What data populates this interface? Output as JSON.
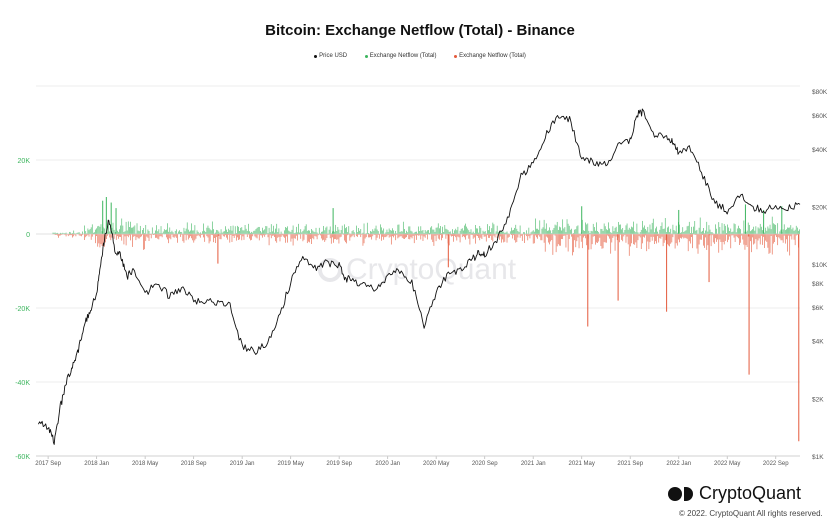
{
  "chart_data": {
    "type": "line+bar",
    "title": "Bitcoin: Exchange Netflow (Total) - Binance",
    "legend": [
      {
        "label": "Price USD",
        "color": "#111111"
      },
      {
        "label": "Exchange Netflow (Total)",
        "color": "#3cb55e"
      },
      {
        "label": "Exchange Netflow (Total)",
        "color": "#e4593b"
      }
    ],
    "x_ticks": [
      "2017 Sep",
      "2018 Jan",
      "2018 May",
      "2018 Sep",
      "2019 Jan",
      "2019 May",
      "2019 Sep",
      "2020 Jan",
      "2020 May",
      "2020 Sep",
      "2021 Jan",
      "2021 May",
      "2021 Sep",
      "2022 Jan",
      "2022 May",
      "2022 Sep"
    ],
    "x_range_months": [
      -1,
      62
    ],
    "left_axis": {
      "label": "Exchange Netflow (Total)",
      "ticks": [
        "20K",
        "0",
        "-20K",
        "-40K",
        "-60K"
      ],
      "tick_values": [
        20000,
        0,
        -20000,
        -40000,
        -60000
      ],
      "ylim": [
        -60000,
        40000
      ],
      "color": "#3cb55e"
    },
    "right_axis": {
      "label": "Price USD",
      "scale": "log",
      "ticks": [
        "$80K",
        "$60K",
        "$40K",
        "$20K",
        "$10K",
        "$8K",
        "$6K",
        "$4K",
        "$2K",
        "$1K"
      ],
      "tick_values": [
        80000,
        60000,
        40000,
        20000,
        10000,
        8000,
        6000,
        4000,
        2000,
        1000
      ],
      "ylim": [
        1000,
        85000
      ]
    },
    "price_series": {
      "name": "Price USD",
      "months": [
        -0.8,
        0,
        0.5,
        1,
        1.5,
        2,
        2.5,
        3,
        3.5,
        4,
        4.3,
        4.6,
        5,
        5.5,
        6,
        6.5,
        7,
        8,
        9,
        10,
        11,
        12,
        13,
        14,
        15,
        16,
        17,
        18,
        19,
        20,
        21,
        22,
        23,
        24,
        24.5,
        25,
        26,
        27,
        28,
        29,
        30,
        31,
        32,
        33,
        34,
        35,
        35.5,
        36,
        37,
        38,
        39,
        40,
        41,
        42,
        43,
        44,
        45,
        46,
        47,
        48,
        48.5,
        49,
        50,
        51,
        51.5,
        52,
        53,
        54,
        55,
        56,
        57,
        58,
        59,
        60,
        61,
        62
      ],
      "values": [
        1500,
        1400,
        1200,
        1800,
        2400,
        3000,
        3600,
        4800,
        5800,
        7000,
        10000,
        13000,
        17000,
        12000,
        11000,
        8500,
        9500,
        7000,
        8000,
        6800,
        7500,
        6500,
        6400,
        6300,
        6200,
        3700,
        3500,
        3800,
        5300,
        8000,
        11000,
        9500,
        10200,
        9800,
        8500,
        8200,
        7800,
        7300,
        8700,
        9300,
        8000,
        4800,
        7000,
        9000,
        9200,
        10600,
        11500,
        11200,
        13500,
        18000,
        29000,
        33000,
        47000,
        58000,
        57000,
        36000,
        34000,
        33000,
        41000,
        44000,
        60000,
        62000,
        48000,
        47000,
        43000,
        38000,
        40000,
        29000,
        21000,
        19000,
        23000,
        20000,
        19000,
        20000,
        19500,
        20500
      ]
    },
    "netflow_series": {
      "name": "Exchange Netflow (Total)",
      "large_inflows_month": [
        4.5,
        4.8,
        5.2,
        5.6,
        23.5,
        44,
        52,
        57.5,
        59,
        60.5
      ],
      "large_inflows_value": [
        9000,
        10000,
        8500,
        7000,
        7000,
        7500,
        6500,
        8000,
        6500,
        7500
      ],
      "large_outflows_month": [
        14,
        33,
        44.5,
        47,
        51,
        54.5,
        57.8,
        61.9
      ],
      "large_outflows_value": [
        -8000,
        -9000,
        -25000,
        -18000,
        -21000,
        -13000,
        -38000,
        -56000
      ]
    }
  },
  "watermark": "CryptoQuant",
  "brand": "CryptoQuant",
  "copyright": "© 2022. CryptoQuant All rights reserved."
}
